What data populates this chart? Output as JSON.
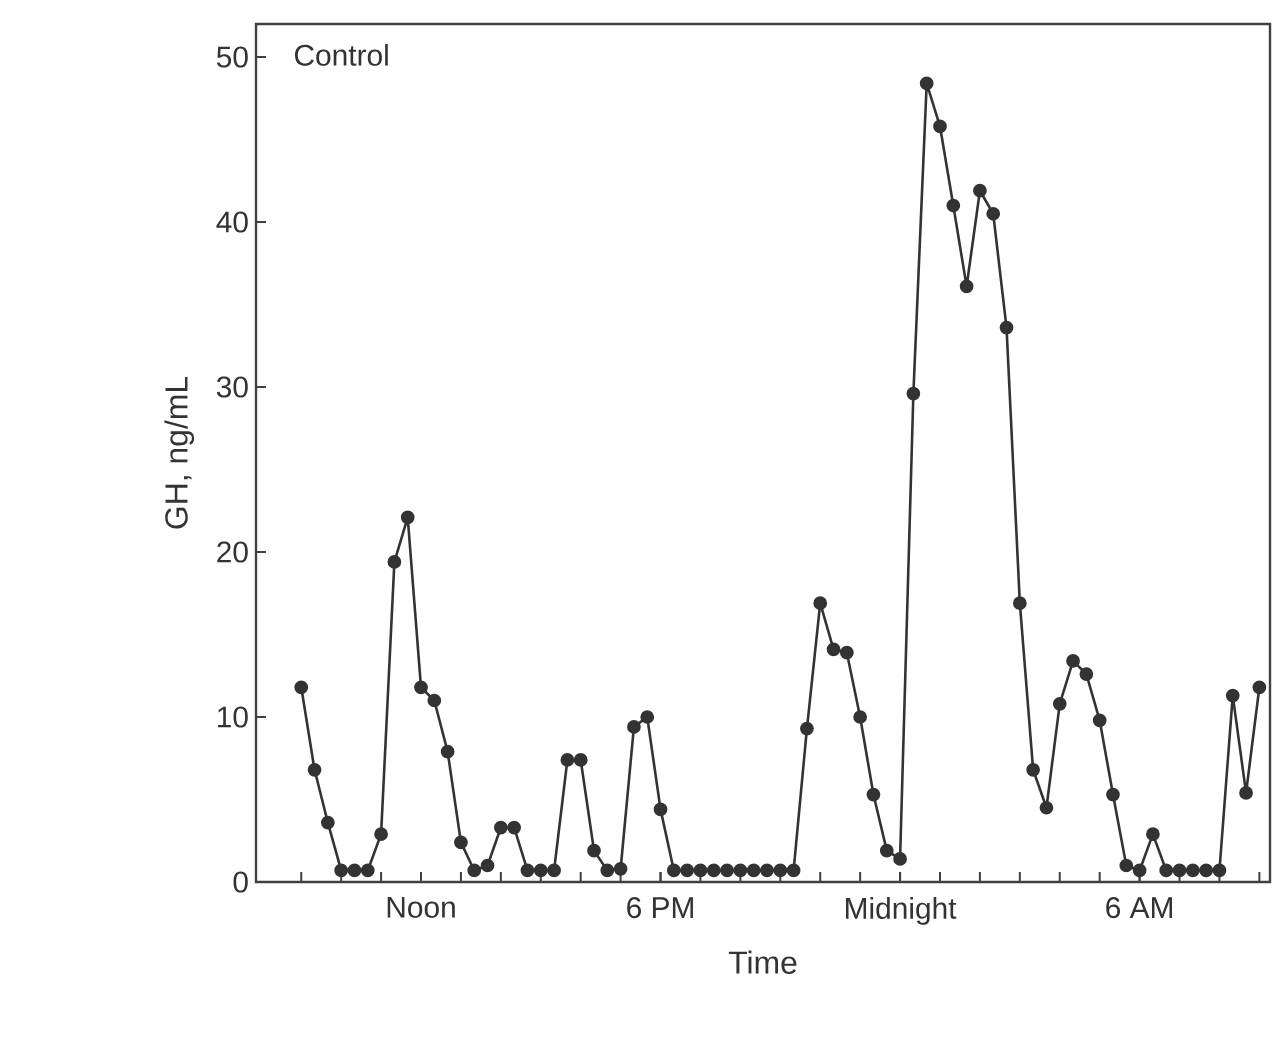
{
  "chart_data": {
    "type": "line",
    "xlabel": "Time",
    "ylabel": "GH, ng/mL",
    "annotations": [
      "Control"
    ],
    "categories": [
      null,
      null,
      null,
      null,
      null,
      null,
      null,
      null,
      null,
      "Noon",
      null,
      null,
      null,
      null,
      null,
      null,
      null,
      null,
      null,
      null,
      null,
      null,
      null,
      null,
      null,
      null,
      null,
      "6 PM",
      null,
      null,
      null,
      null,
      null,
      null,
      null,
      null,
      null,
      null,
      null,
      null,
      null,
      null,
      null,
      null,
      null,
      "Midnight",
      null,
      null,
      null,
      null,
      null,
      null,
      null,
      null,
      null,
      null,
      null,
      null,
      null,
      null,
      null,
      null,
      null,
      "6 AM",
      null,
      null,
      null,
      null,
      null,
      null,
      null,
      null,
      null
    ],
    "ylim": [
      0,
      52
    ],
    "yticks": [
      0,
      10,
      20,
      30,
      40,
      50
    ],
    "grid": false,
    "marker": "circle",
    "line_style": "solid",
    "series": [
      {
        "color": "#333333",
        "values": [
          11.8,
          6.8,
          3.6,
          0.7,
          0.7,
          0.7,
          2.9,
          19.4,
          22.1,
          11.8,
          11.0,
          7.9,
          2.4,
          0.7,
          1.0,
          3.3,
          3.3,
          0.7,
          0.7,
          0.7,
          7.4,
          7.4,
          1.9,
          0.7,
          0.8,
          9.4,
          10.0,
          4.4,
          0.7,
          0.7,
          0.7,
          0.7,
          0.7,
          0.7,
          0.7,
          0.7,
          0.7,
          0.7,
          9.3,
          16.9,
          14.1,
          13.9,
          10.0,
          5.3,
          1.9,
          1.4,
          29.6,
          48.4,
          45.8,
          41.0,
          36.1,
          41.9,
          40.5,
          33.6,
          16.9,
          6.8,
          4.5,
          10.8,
          13.4,
          12.6,
          9.8,
          5.3,
          1.0,
          0.7,
          2.9,
          0.7,
          0.7,
          0.7,
          0.7,
          0.7,
          11.3,
          5.4,
          11.8
        ]
      }
    ]
  }
}
